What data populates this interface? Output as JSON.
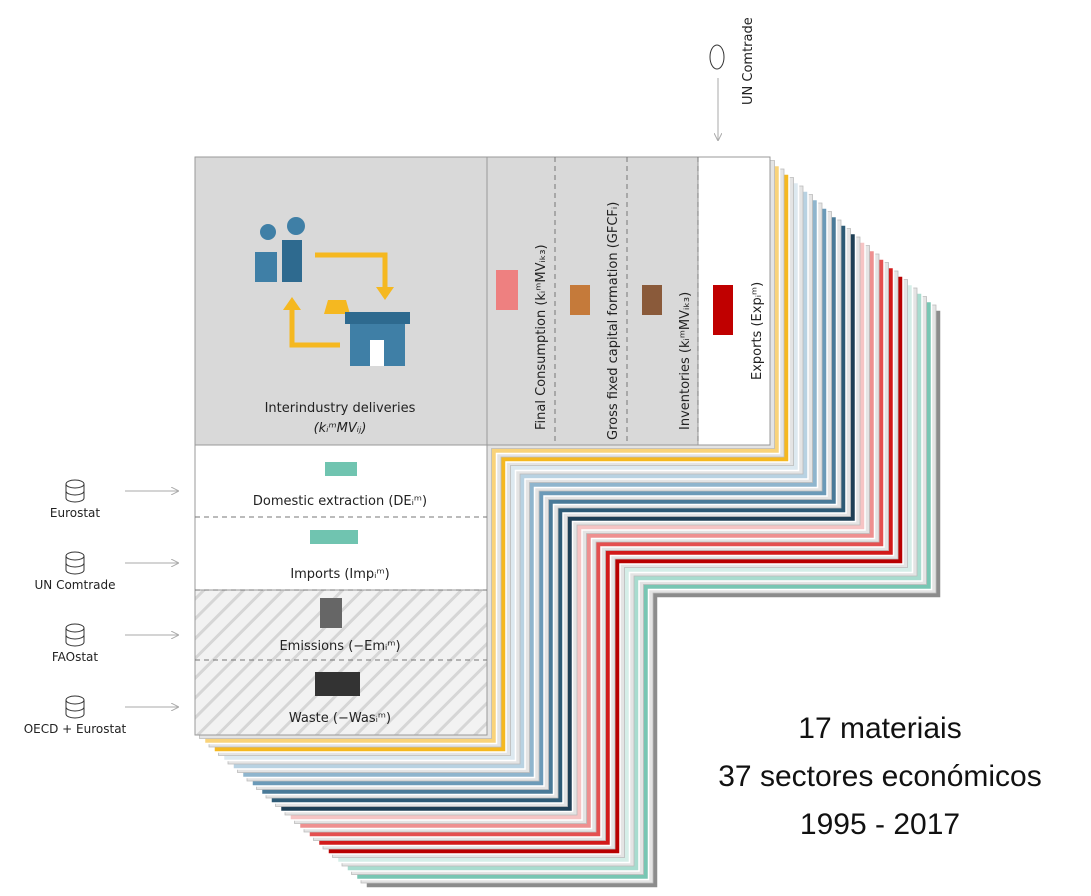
{
  "top_source": "UN Comtrade",
  "interindustry": {
    "title": "Interindustry deliveries",
    "formula": "(kᵢᵐMVᵢⱼ)"
  },
  "columns": [
    "Final Consumption (kᵢᵐMVᵢₖ₃)",
    "Gross fixed capital formation (GFCFᵢ)",
    "Inventories (kᵢᵐMVᵢₖ₃)",
    "Exports (Expᵢᵐ)"
  ],
  "rows": [
    "Domestic extraction (DEᵢᵐ)",
    "Imports (Impᵢᵐ)",
    "Emissions (−Emᵢᵐ)",
    "Waste (−Wasᵢᵐ)"
  ],
  "sources": [
    "Eurostat",
    "UN Comtrade",
    "FAOstat",
    "OECD + Eurostat"
  ],
  "summary": [
    "17 materiais",
    "37 sectores económicos",
    "1995 - 2017"
  ]
}
